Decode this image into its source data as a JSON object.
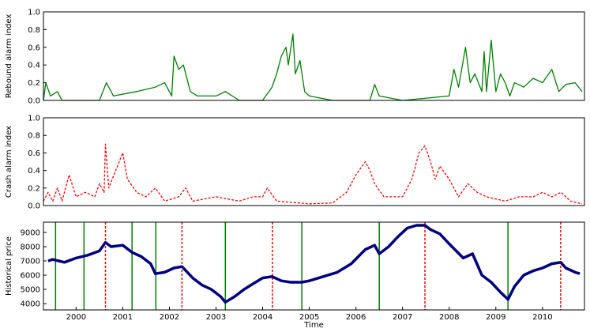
{
  "chart_data": [
    {
      "type": "line",
      "ylabel": "Rebound alarm index",
      "xlim": [
        1999.3,
        2010.9
      ],
      "ylim": [
        0,
        1
      ],
      "yticks": [
        {
          "value": 0,
          "label": "0.0"
        },
        {
          "value": 0.2,
          "label": "0.2"
        },
        {
          "value": 0.4,
          "label": "0.4"
        },
        {
          "value": 0.6,
          "label": "0.6"
        },
        {
          "value": 0.8,
          "label": "0.8"
        },
        {
          "value": 1,
          "label": "1.0"
        }
      ],
      "series": [
        {
          "color": "#008000",
          "style": "solid",
          "x": [
            1999.3,
            1999.35,
            1999.45,
            1999.6,
            1999.7,
            2000.5,
            2000.65,
            2000.8,
            2001.3,
            2001.7,
            2001.9,
            2002.05,
            2002.1,
            2002.2,
            2002.3,
            2002.45,
            2002.6,
            2003.0,
            2003.2,
            2003.5,
            2004.0,
            2004.2,
            2004.3,
            2004.4,
            2004.5,
            2004.55,
            2004.65,
            2004.7,
            2004.8,
            2004.9,
            2005.0,
            2005.5,
            2006.3,
            2006.4,
            2006.5,
            2007.0,
            2008.0,
            2008.1,
            2008.2,
            2008.35,
            2008.45,
            2008.55,
            2008.7,
            2008.75,
            2008.8,
            2008.9,
            2009.0,
            2009.1,
            2009.2,
            2009.3,
            2009.4,
            2009.6,
            2009.8,
            2010.0,
            2010.2,
            2010.35,
            2010.5,
            2010.7,
            2010.85
          ],
          "values": [
            0,
            0.2,
            0.05,
            0.1,
            0,
            0,
            0.2,
            0.05,
            0.1,
            0.15,
            0.2,
            0.05,
            0.5,
            0.35,
            0.4,
            0.1,
            0.05,
            0.05,
            0.1,
            0,
            0,
            0.15,
            0.3,
            0.5,
            0.6,
            0.4,
            0.75,
            0.3,
            0.45,
            0.1,
            0.05,
            0,
            0,
            0.18,
            0.05,
            0,
            0.05,
            0.35,
            0.15,
            0.6,
            0.2,
            0.3,
            0.1,
            0.55,
            0.1,
            0.68,
            0.1,
            0.3,
            0.2,
            0.05,
            0.2,
            0.15,
            0.25,
            0.2,
            0.35,
            0.1,
            0.18,
            0.2,
            0.1
          ]
        }
      ]
    },
    {
      "type": "line",
      "ylabel": "Crash alarm index",
      "xlim": [
        1999.3,
        2010.9
      ],
      "ylim": [
        0,
        1
      ],
      "yticks": [
        {
          "value": 0,
          "label": "0.0"
        },
        {
          "value": 0.2,
          "label": "0.2"
        },
        {
          "value": 0.4,
          "label": "0.4"
        },
        {
          "value": 0.6,
          "label": "0.6"
        },
        {
          "value": 0.8,
          "label": "0.8"
        },
        {
          "value": 1,
          "label": "1.0"
        }
      ],
      "series": [
        {
          "color": "#ff0000",
          "style": "dashed",
          "x": [
            1999.3,
            1999.4,
            1999.5,
            1999.6,
            1999.7,
            1999.85,
            2000.0,
            2000.2,
            2000.4,
            2000.5,
            2000.6,
            2000.63,
            2000.7,
            2000.85,
            2001.0,
            2001.1,
            2001.3,
            2001.5,
            2001.7,
            2001.9,
            2002.2,
            2002.35,
            2002.5,
            2003.0,
            2003.5,
            2003.8,
            2004.0,
            2004.1,
            2004.3,
            2005.0,
            2005.5,
            2005.8,
            2006.0,
            2006.2,
            2006.3,
            2006.4,
            2006.6,
            2007.0,
            2007.2,
            2007.35,
            2007.48,
            2007.6,
            2007.7,
            2007.8,
            2008.0,
            2008.2,
            2008.4,
            2008.6,
            2008.8,
            2009.2,
            2009.5,
            2009.8,
            2010.0,
            2010.2,
            2010.4,
            2010.6,
            2010.85
          ],
          "values": [
            0.05,
            0.15,
            0.05,
            0.2,
            0.05,
            0.35,
            0.1,
            0.15,
            0.1,
            0.25,
            0.15,
            0.7,
            0.2,
            0.4,
            0.6,
            0.3,
            0.15,
            0.1,
            0.2,
            0.05,
            0.1,
            0.2,
            0.05,
            0.1,
            0.05,
            0.1,
            0.1,
            0.2,
            0.05,
            0.02,
            0.03,
            0.15,
            0.35,
            0.5,
            0.4,
            0.25,
            0.1,
            0.1,
            0.3,
            0.6,
            0.68,
            0.5,
            0.3,
            0.45,
            0.3,
            0.1,
            0.25,
            0.15,
            0.1,
            0.05,
            0.1,
            0.1,
            0.15,
            0.1,
            0.15,
            0.05,
            0.02
          ]
        }
      ]
    },
    {
      "type": "line",
      "ylabel": "Historical price",
      "xlabel": "Time",
      "xlim": [
        1999.3,
        2010.9
      ],
      "ylim": [
        3560,
        9720
      ],
      "yticks": [
        4000,
        5000,
        6000,
        7000,
        8000,
        9000
      ],
      "xticks": [
        2000,
        2001,
        2002,
        2003,
        2004,
        2005,
        2006,
        2007,
        2008,
        2009,
        2010
      ],
      "series": [
        {
          "color": "#000080",
          "style": "dots",
          "x": [
            1999.4,
            1999.5,
            1999.75,
            2000.0,
            2000.25,
            2000.5,
            2000.63,
            2000.75,
            2001.0,
            2001.2,
            2001.4,
            2001.6,
            2001.7,
            2001.9,
            2002.1,
            2002.27,
            2002.5,
            2002.7,
            2002.9,
            2003.1,
            2003.2,
            2003.4,
            2003.6,
            2003.8,
            2004.0,
            2004.2,
            2004.4,
            2004.6,
            2004.84,
            2005.0,
            2005.3,
            2005.6,
            2005.9,
            2006.2,
            2006.4,
            2006.5,
            2006.7,
            2006.9,
            2007.1,
            2007.3,
            2007.48,
            2007.6,
            2007.8,
            2008.0,
            2008.3,
            2008.5,
            2008.7,
            2008.9,
            2009.1,
            2009.26,
            2009.4,
            2009.6,
            2009.8,
            2010.0,
            2010.2,
            2010.39,
            2010.5,
            2010.7,
            2010.8
          ],
          "values": [
            7000,
            7100,
            6900,
            7200,
            7400,
            7700,
            8300,
            8000,
            8100,
            7600,
            7300,
            6800,
            6100,
            6200,
            6500,
            6600,
            5800,
            5300,
            5000,
            4500,
            4100,
            4500,
            5000,
            5400,
            5800,
            5900,
            5600,
            5500,
            5500,
            5600,
            5900,
            6200,
            6800,
            7800,
            8100,
            7500,
            8000,
            8700,
            9300,
            9500,
            9500,
            9200,
            8900,
            8200,
            7200,
            7500,
            6000,
            5500,
            4800,
            4300,
            5200,
            6000,
            6300,
            6500,
            6800,
            6900,
            6500,
            6200,
            6100
          ]
        }
      ],
      "vlines": [
        {
          "color": "#008000",
          "style": "solid",
          "x": [
            1999.56,
            2000.17,
            2001.2,
            2001.71,
            2003.2,
            2004.84,
            2006.5,
            2009.26
          ]
        },
        {
          "color": "#ff0000",
          "style": "dashed",
          "x": [
            2000.63,
            2002.27,
            2004.21,
            2007.48,
            2010.39
          ]
        }
      ]
    }
  ]
}
